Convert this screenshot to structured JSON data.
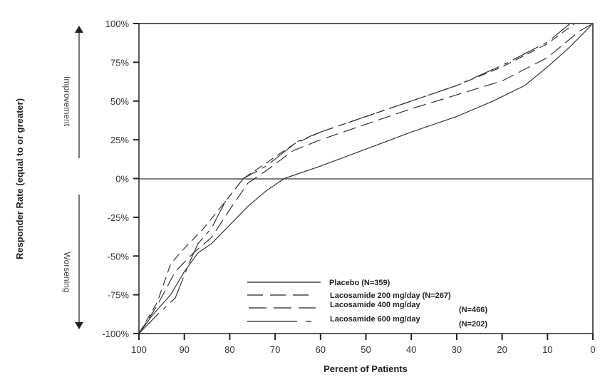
{
  "chart_data": {
    "type": "line",
    "title": "",
    "xlabel": "Percent of Patients",
    "ylabel": "Responder Rate (equal to or greater)",
    "xlim": [
      100,
      0
    ],
    "ylim": [
      -100,
      100
    ],
    "x_reversed": true,
    "grid": false,
    "legend_position": "lower-right inside plot",
    "x_ticks": [
      100,
      90,
      80,
      70,
      60,
      50,
      40,
      30,
      20,
      10,
      0
    ],
    "y_ticks": [
      "100%",
      "75%",
      "50%",
      "25%",
      "0%",
      "-25%",
      "-50%",
      "-75%",
      "-100%"
    ],
    "y_tick_values": [
      100,
      75,
      50,
      25,
      0,
      -25,
      -50,
      -75,
      -100
    ],
    "annotations": [
      {
        "text": "Improvement",
        "direction": "up"
      },
      {
        "text": "Worsening",
        "direction": "down"
      }
    ],
    "reference_line": {
      "y": 0
    },
    "series": [
      {
        "name": "Placebo (N=359)",
        "label": "Placebo",
        "n": "(N=359)",
        "style": "solid",
        "x": [
          100,
          97,
          93,
          90,
          87,
          84,
          80,
          76,
          72,
          68,
          60,
          50,
          40,
          30,
          22,
          15,
          10,
          5,
          0
        ],
        "y": [
          -100,
          -88,
          -75,
          -60,
          -48,
          -42,
          -30,
          -18,
          -8,
          0,
          8,
          19,
          30,
          40,
          50,
          60,
          72,
          85,
          100
        ]
      },
      {
        "name": "Lacosamide 200 mg/day (N=267)",
        "label": "Lacosamide 200 mg/day",
        "n": "(N=267)",
        "style": "longdash",
        "x": [
          100,
          96,
          92,
          88,
          84,
          80,
          76,
          72,
          66,
          60,
          50,
          40,
          30,
          20,
          10,
          3,
          0
        ],
        "y": [
          -100,
          -82,
          -60,
          -48,
          -38,
          -20,
          -3,
          5,
          18,
          25,
          35,
          45,
          54,
          63,
          78,
          95,
          100
        ]
      },
      {
        "name": "Lacosamide 400 mg/day (N=466)",
        "label": "Lacosamide 400 mg/day",
        "n": "(N=466)",
        "style": "dash",
        "x": [
          100,
          96,
          93,
          90,
          86,
          81,
          77,
          72,
          66,
          60,
          50,
          40,
          30,
          20,
          10,
          4
        ],
        "y": [
          -100,
          -80,
          -55,
          -45,
          -33,
          -15,
          0,
          10,
          22,
          30,
          40,
          50,
          60,
          72,
          87,
          100
        ]
      },
      {
        "name": "Lacosamide 600 mg/day (N=202)",
        "label": "Lacosamide 600 mg/day",
        "n": "(N=202)",
        "style": "dashdot",
        "x": [
          100,
          96,
          92,
          89,
          87,
          84,
          81,
          77,
          72,
          65,
          60,
          50,
          40,
          30,
          20,
          10,
          5
        ],
        "y": [
          -100,
          -88,
          -77,
          -55,
          -42,
          -32,
          -15,
          0,
          8,
          24,
          30,
          40,
          50,
          60,
          73,
          88,
          100
        ]
      }
    ]
  },
  "colors": {
    "line": "#333333",
    "axis": "#222222",
    "arrow": "#777777",
    "side_label": "#444444"
  }
}
